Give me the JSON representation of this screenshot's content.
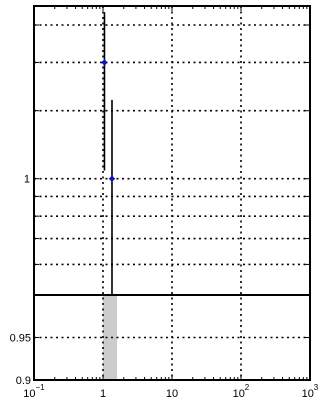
{
  "chart_data": {
    "type": "scatter",
    "title": "",
    "xlabel": "",
    "ylabel": "",
    "x_scale": "log",
    "xlim": [
      0.1,
      1000
    ],
    "x_ticks": [
      {
        "value": 0.1,
        "base": "10",
        "exp": "−1"
      },
      {
        "value": 1,
        "base": "1",
        "exp": ""
      },
      {
        "value": 10,
        "base": "10",
        "exp": ""
      },
      {
        "value": 100,
        "base": "10",
        "exp": "2"
      },
      {
        "value": 1000,
        "base": "10",
        "exp": "3"
      }
    ],
    "grid": true,
    "top_panel": {
      "y_scale": "log",
      "ylim": [
        0.5,
        2.8
      ],
      "y_tick_labels": [
        {
          "value": 1,
          "label": "1"
        }
      ],
      "y_gridlines": [
        0.6,
        0.7,
        0.8,
        0.9,
        1,
        1.5,
        2,
        2.5
      ],
      "series": [
        {
          "points": [
            {
              "x": 1.05,
              "y": 2.0,
              "y_low": 1.05,
              "y_high": 2.7
            },
            {
              "x": 1.35,
              "y": 1.0,
              "y_low": 0.5,
              "y_high": 1.6
            }
          ]
        }
      ]
    },
    "bottom_panel": {
      "ylim": [
        0.9,
        1.0
      ],
      "y_tick_labels": [
        {
          "value": 0.9,
          "label": "0.9"
        },
        {
          "value": 0.95,
          "label": "0.95"
        }
      ],
      "y_gridlines": [
        0.95
      ],
      "band": {
        "x_from": 1.0,
        "x_to": 1.6
      }
    }
  },
  "colors": {
    "marker": "#1010c8",
    "band": "#cccccc",
    "frame": "#000000"
  }
}
